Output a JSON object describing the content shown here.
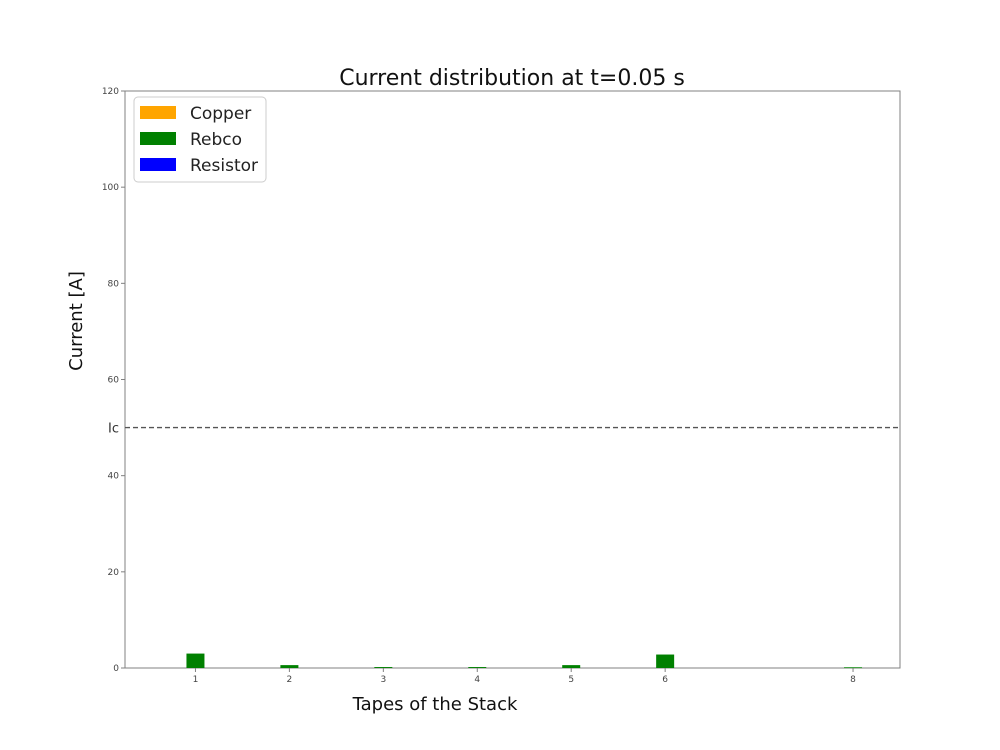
{
  "chart_data": {
    "type": "bar",
    "title": "Current distribution at t=0.05 s",
    "xlabel": "Tapes of the Stack",
    "ylabel": "Current [A]",
    "ylim": [
      0,
      120
    ],
    "xlim": [
      0.25,
      8.5
    ],
    "yticks": [
      0,
      20,
      40,
      60,
      80,
      100,
      120
    ],
    "xticks": [
      1,
      2,
      3,
      4,
      5,
      6,
      8
    ],
    "reference_line": {
      "label": "Ic",
      "value": 50,
      "style": "dashed",
      "color": "#555555"
    },
    "legend": {
      "placement": "top-left",
      "entries": [
        {
          "name": "Copper",
          "color": "#ffa500"
        },
        {
          "name": "Rebco",
          "color": "#008000"
        },
        {
          "name": "Resistor",
          "color": "#0000ff"
        }
      ]
    },
    "series": [
      {
        "name": "Copper",
        "color": "#ffa500",
        "x": [
          1,
          2,
          3,
          4,
          5,
          6,
          8
        ],
        "values": [
          0,
          0,
          0,
          0,
          0,
          0,
          0
        ]
      },
      {
        "name": "Rebco",
        "color": "#008000",
        "x": [
          1,
          2,
          3,
          4,
          5,
          6,
          8
        ],
        "values": [
          3,
          0.6,
          0.2,
          0.2,
          0.6,
          2.8,
          0.15
        ]
      },
      {
        "name": "Resistor",
        "color": "#0000ff",
        "x": [
          1,
          2,
          3,
          4,
          5,
          6,
          8
        ],
        "values": [
          0,
          0,
          0,
          0,
          0,
          0,
          0
        ]
      }
    ],
    "grid": false
  }
}
